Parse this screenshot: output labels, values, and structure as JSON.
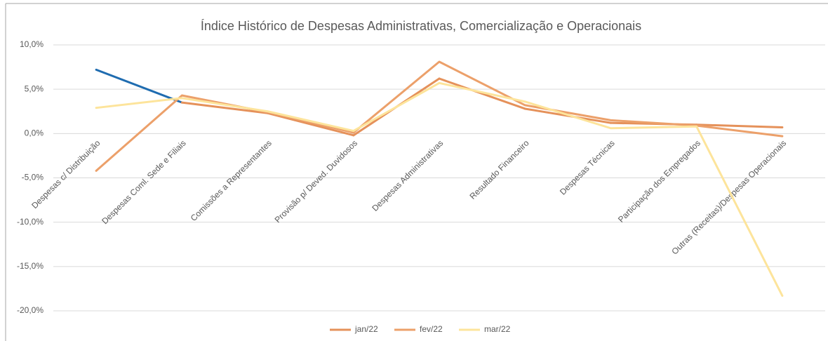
{
  "chart_data": {
    "type": "line",
    "title": "Índice Histórico de Despesas Administrativas, Comercialização e Operacionais",
    "categories": [
      "Despesas c/ Distribuição",
      "Despesas Coml. Sede e Filiais",
      "Comissões a Representantes",
      "Provisão p/ Deved. Duvidosos",
      "Despesas  Administrativas",
      "Resultado Financeiro",
      "Despesas  Técnicas",
      "Participação dos Empregados",
      "Outras (Receitas)/Despesas Operacionais"
    ],
    "series": [
      {
        "name": "jan/22",
        "color": "#e5915a",
        "segment_colors": [
          "#1f6cb0",
          "#e5915a",
          "#e5915a",
          "#e5915a",
          "#e5915a",
          "#e5915a",
          "#e5915a",
          "#e5915a"
        ],
        "values": [
          7.2,
          3.5,
          2.3,
          -0.2,
          6.2,
          2.8,
          1.2,
          1.0,
          0.7
        ]
      },
      {
        "name": "fev/22",
        "color": "#eca06a",
        "values": [
          -4.2,
          4.3,
          2.4,
          0.1,
          8.1,
          3.2,
          1.5,
          0.9,
          -0.3
        ]
      },
      {
        "name": "mar/22",
        "color": "#fde49b",
        "values": [
          2.9,
          4.0,
          2.5,
          0.3,
          5.7,
          3.6,
          0.6,
          0.8,
          -18.3
        ]
      }
    ],
    "ylim": [
      -20,
      10
    ],
    "yticks": [
      {
        "value": 10,
        "label": "10,0%"
      },
      {
        "value": 5,
        "label": "5,0%"
      },
      {
        "value": 0,
        "label": "0,0%"
      },
      {
        "value": -5,
        "label": "-5,0%"
      },
      {
        "value": -10,
        "label": "-10,0%"
      },
      {
        "value": -15,
        "label": "-15,0%"
      },
      {
        "value": -20,
        "label": "-20,0%"
      }
    ],
    "grid": true,
    "legend": "bottom"
  }
}
